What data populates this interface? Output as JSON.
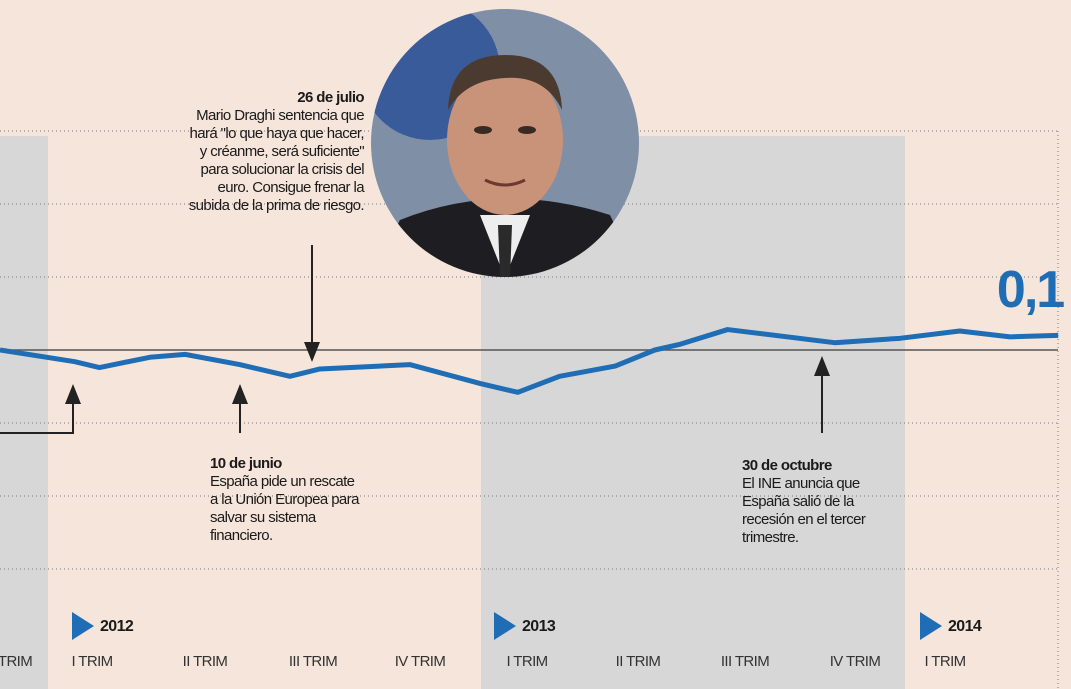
{
  "chart_data": {
    "type": "line",
    "x": [
      -0.86,
      -0.16,
      0.07,
      0.54,
      0.87,
      1.38,
      1.85,
      2.13,
      2.97,
      3.63,
      3.98,
      4.37,
      4.89,
      5.26,
      5.5,
      5.94,
      6.94,
      7.55,
      8.11,
      8.58,
      9.03
    ],
    "values": [
      0.0,
      -0.08,
      -0.12,
      -0.05,
      -0.03,
      -0.1,
      -0.18,
      -0.13,
      -0.1,
      -0.23,
      -0.29,
      -0.18,
      -0.11,
      0.0,
      0.04,
      0.14,
      0.05,
      0.08,
      0.13,
      0.09,
      0.1
    ],
    "value_labels": [
      null,
      null,
      null,
      null,
      null,
      null,
      null,
      null,
      null,
      null,
      null,
      null,
      null,
      null,
      null,
      null,
      null,
      null,
      null,
      null,
      "0,1"
    ],
    "color": "#1f6db5",
    "xlim": [
      -0.86,
      9.03
    ],
    "ylim": [
      -1.5,
      1.5
    ],
    "yticks": [
      -1.5,
      -1,
      -0.5,
      0,
      0.5,
      1,
      1.5
    ],
    "grid": true,
    "quarter_labels": [
      "TRIM",
      "I TRIM",
      "II TRIM",
      "III TRIM",
      "IV TRIM",
      "I TRIM",
      "II TRIM",
      "III TRIM",
      "IV TRIM",
      "I TRIM"
    ],
    "years": [
      "2012",
      "2013",
      "2014"
    ],
    "annotations": [
      {
        "title": "26 de julio",
        "lines": [
          "Mario Draghi sentencia que",
          "hará \"lo que haya que hacer,",
          "y créanme, será suficiente\"",
          "para solucionar la crisis del",
          "euro. Consigue frenar la",
          "subida de la prima de riesgo."
        ]
      },
      {
        "title": "10 de junio",
        "lines": [
          "España pide un rescate",
          "a la Unión Europea para",
          "salvar su sistema",
          "financiero."
        ]
      },
      {
        "title": "30 de octubre",
        "lines": [
          "El INE anuncia que",
          "España salió de la",
          "recesión en el tercer",
          "trimestre."
        ]
      }
    ]
  }
}
